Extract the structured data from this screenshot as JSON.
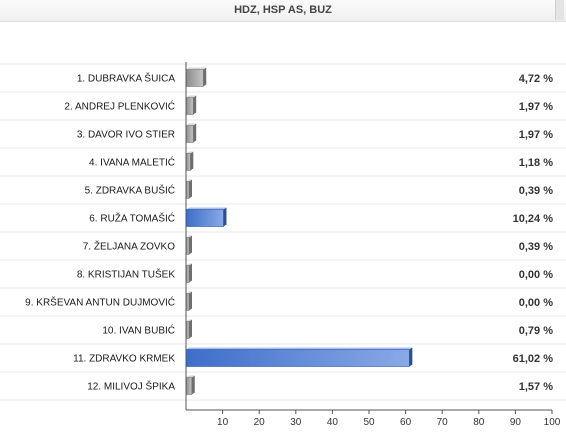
{
  "header": {
    "title": "HDZ, HSP AS, BUZ"
  },
  "colors": {
    "highlight": "#3d6ec9",
    "highlight_light": "#8aa9e6",
    "normal": "#8c8c8c",
    "normal_light": "#c4c4c4"
  },
  "chart_data": {
    "type": "bar",
    "orientation": "horizontal",
    "categories": [
      "1. DUBRAVKA ŠUICA",
      "2. ANDREJ PLENKOVIĆ",
      "3. DAVOR IVO STIER",
      "4. IVANA MALETIĆ",
      "5. ZDRAVKA BUŠIĆ",
      "6. RUŽA TOMAŠIĆ",
      "7. ŽELJANA ZOVKO",
      "8. KRISTIJAN TUŠEK",
      "9. KRŠEVAN ANTUN DUJMOVIĆ",
      "10. IVAN BUBIĆ",
      "11. ZDRAVKO KRMEK",
      "12. MILIVOJ ŠPIKA"
    ],
    "values": [
      4.72,
      1.97,
      1.97,
      1.18,
      0.39,
      10.24,
      0.39,
      0.0,
      0.0,
      0.79,
      61.02,
      1.57
    ],
    "value_labels": [
      "4,72 %",
      "1,97 %",
      "1,97 %",
      "1,18 %",
      "0,39 %",
      "10,24 %",
      "0,39 %",
      "0,00 %",
      "0,00 %",
      "0,79 %",
      "61,02 %",
      "1,57 %"
    ],
    "highlighted": [
      false,
      false,
      false,
      false,
      false,
      true,
      false,
      false,
      false,
      false,
      true,
      false
    ],
    "xlim": [
      0,
      100
    ],
    "xticks": [
      10,
      20,
      30,
      40,
      50,
      60,
      70,
      80,
      90,
      100
    ],
    "title": "",
    "xlabel": "",
    "ylabel": "",
    "grid": false
  }
}
